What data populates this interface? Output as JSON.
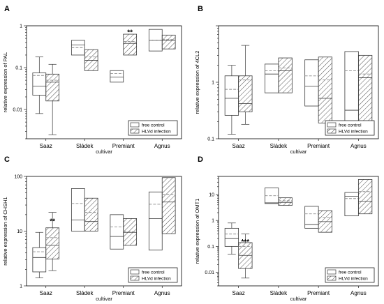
{
  "colors": {
    "axis": "#000000",
    "box_edge": "#3a3a3a",
    "mean_line": "#8c8c8c",
    "hatch": "#505050",
    "background": "#ffffff"
  },
  "legend": {
    "free_label": "free control",
    "hlvd_label": "HLVd infection"
  },
  "chart_data": [
    {
      "panel": "A",
      "type": "box",
      "yscale": "log",
      "ylabel": "relative expression of PAL",
      "xlabel": "cultivar",
      "yticks": [
        {
          "v": 0.01,
          "label": "0.01"
        },
        {
          "v": 0.1,
          "label": "0.1"
        },
        {
          "v": 1,
          "label": "1"
        }
      ],
      "ylim": [
        0.002,
        1
      ],
      "categories": [
        "Saaz",
        "Sládek",
        "Premiant",
        "Agnus"
      ],
      "series": [
        {
          "name": "free control",
          "hatched": false,
          "boxes": [
            {
              "wlo": 0.008,
              "q1": 0.022,
              "med": 0.036,
              "q3": 0.075,
              "whi": 0.18,
              "mean": 0.065
            },
            {
              "wlo": null,
              "q1": 0.2,
              "med": 0.35,
              "q3": 0.45,
              "whi": null,
              "mean": 0.3
            },
            {
              "wlo": null,
              "q1": 0.045,
              "med": 0.06,
              "q3": 0.085,
              "whi": null,
              "mean": 0.072
            },
            {
              "wlo": null,
              "q1": 0.25,
              "med": 0.45,
              "q3": 0.82,
              "whi": null,
              "mean": 0.45
            }
          ]
        },
        {
          "name": "HLVd infection",
          "hatched": true,
          "boxes": [
            {
              "wlo": 0.0025,
              "q1": 0.016,
              "med": 0.045,
              "q3": 0.07,
              "whi": 0.12,
              "mean": 0.05
            },
            {
              "wlo": null,
              "q1": 0.085,
              "med": 0.15,
              "q3": 0.27,
              "whi": null,
              "mean": 0.18
            },
            {
              "wlo": null,
              "q1": 0.2,
              "med": 0.38,
              "q3": 0.63,
              "whi": null,
              "mean": 0.42
            },
            {
              "wlo": null,
              "q1": 0.28,
              "med": 0.45,
              "q3": 0.6,
              "whi": null,
              "mean": 0.47
            }
          ]
        }
      ],
      "annotations": [
        {
          "text": "**",
          "category": "Premiant",
          "series": "HLVd infection",
          "y": 0.7
        }
      ]
    },
    {
      "panel": "B",
      "type": "box",
      "yscale": "log",
      "ylabel": "relative expression of 4CL2",
      "xlabel": "cultivar",
      "yticks": [
        {
          "v": 0.1,
          "label": "0.1"
        },
        {
          "v": 1,
          "label": "1"
        }
      ],
      "ylim": [
        0.1,
        10
      ],
      "categories": [
        "Saaz",
        "Sládek",
        "Premiant",
        "Agnus"
      ],
      "series": [
        {
          "name": "free control",
          "hatched": false,
          "boxes": [
            {
              "wlo": 0.12,
              "q1": 0.26,
              "med": 0.52,
              "q3": 1.3,
              "whi": 2.0,
              "mean": 0.75
            },
            {
              "wlo": null,
              "q1": 0.65,
              "med": 1.4,
              "q3": 2.1,
              "whi": null,
              "mean": 1.6
            },
            {
              "wlo": null,
              "q1": 0.38,
              "med": 0.85,
              "q3": 2.5,
              "whi": null,
              "mean": 1.3
            },
            {
              "wlo": null,
              "q1": 0.14,
              "med": 0.32,
              "q3": 3.5,
              "whi": null,
              "mean": 1.6
            }
          ]
        },
        {
          "name": "HLVd infection",
          "hatched": true,
          "boxes": [
            {
              "wlo": 0.18,
              "q1": 0.3,
              "med": 0.42,
              "q3": 1.3,
              "whi": 4.5,
              "mean": 1.1
            },
            {
              "wlo": null,
              "q1": 0.65,
              "med": 1.6,
              "q3": 2.7,
              "whi": null,
              "mean": 1.8
            },
            {
              "wlo": null,
              "q1": 0.19,
              "med": 0.52,
              "q3": 2.8,
              "whi": null,
              "mean": 1.1
            },
            {
              "wlo": null,
              "q1": 0.15,
              "med": 1.2,
              "q3": 3.0,
              "whi": null,
              "mean": 1.4
            }
          ]
        }
      ],
      "annotations": []
    },
    {
      "panel": "C",
      "type": "box",
      "yscale": "log",
      "ylabel": "relative expression of CHSH1",
      "xlabel": "cultivar",
      "yticks": [
        {
          "v": 1,
          "label": "1"
        },
        {
          "v": 10,
          "label": "10"
        },
        {
          "v": 100,
          "label": "100"
        }
      ],
      "ylim": [
        1,
        100
      ],
      "categories": [
        "Saaz",
        "Sládek",
        "Premiant",
        "Agnus"
      ],
      "series": [
        {
          "name": "free control",
          "hatched": false,
          "boxes": [
            {
              "wlo": 1.4,
              "q1": 1.8,
              "med": 3.3,
              "q3": 5.0,
              "whi": 9.5,
              "mean": 4.2
            },
            {
              "wlo": null,
              "q1": 10,
              "med": 16,
              "q3": 60,
              "whi": null,
              "mean": 32
            },
            {
              "wlo": null,
              "q1": 4.7,
              "med": 8.0,
              "q3": 20,
              "whi": null,
              "mean": 12
            },
            {
              "wlo": null,
              "q1": 4.5,
              "med": 17,
              "q3": 52,
              "whi": null,
              "mean": 31
            }
          ]
        },
        {
          "name": "HLVd infection",
          "hatched": true,
          "boxes": [
            {
              "wlo": 1.9,
              "q1": 3.1,
              "med": 5.5,
              "q3": 11.5,
              "whi": 22,
              "mean": 7.6
            },
            {
              "wlo": null,
              "q1": 10,
              "med": 15,
              "q3": 40,
              "whi": null,
              "mean": 22
            },
            {
              "wlo": null,
              "q1": 5.5,
              "med": 9.5,
              "q3": 17,
              "whi": null,
              "mean": 9.8
            },
            {
              "wlo": null,
              "q1": 9,
              "med": 34,
              "q3": 95,
              "whi": null,
              "mean": 47
            }
          ]
        }
      ],
      "annotations": [
        {
          "text": "**",
          "category": "Saaz",
          "series": "HLVd infection",
          "y": 15
        }
      ]
    },
    {
      "panel": "D",
      "type": "box",
      "yscale": "log",
      "ylabel": "relative expression of OMT1",
      "xlabel": "cultivar",
      "yticks": [
        {
          "v": 0.01,
          "label": "0.01"
        },
        {
          "v": 0.1,
          "label": "0.1"
        },
        {
          "v": 1,
          "label": "1"
        },
        {
          "v": 10,
          "label": "10"
        }
      ],
      "ylim": [
        0.003,
        50
      ],
      "categories": [
        "Saaz",
        "Sládek",
        "Premiant",
        "Agnus"
      ],
      "series": [
        {
          "name": "free control",
          "hatched": false,
          "boxes": [
            {
              "wlo": 0.05,
              "q1": 0.1,
              "med": 0.2,
              "q3": 0.5,
              "whi": 0.8,
              "mean": 0.3
            },
            {
              "wlo": null,
              "q1": 4.5,
              "med": 4.8,
              "q3": 18,
              "whi": null,
              "mean": 9.0
            },
            {
              "wlo": null,
              "q1": 0.5,
              "med": 0.7,
              "q3": 3.5,
              "whi": null,
              "mean": 1.8
            },
            {
              "wlo": null,
              "q1": 1.5,
              "med": 8.5,
              "q3": 12,
              "whi": null,
              "mean": 7.0
            }
          ]
        },
        {
          "name": "HLVd infection",
          "hatched": true,
          "boxes": [
            {
              "wlo": 0.006,
              "q1": 0.014,
              "med": 0.045,
              "q3": 0.14,
              "whi": 0.3,
              "mean": 0.1
            },
            {
              "wlo": null,
              "q1": 3.8,
              "med": 5.0,
              "q3": 7.5,
              "whi": null,
              "mean": 5.8
            },
            {
              "wlo": null,
              "q1": 0.35,
              "med": 0.9,
              "q3": 2.4,
              "whi": null,
              "mean": 1.3
            },
            {
              "wlo": null,
              "q1": 1.8,
              "med": 5.5,
              "q3": 38,
              "whi": null,
              "mean": 13
            }
          ]
        }
      ],
      "annotations": [
        {
          "text": "***",
          "category": "Saaz",
          "series": "HLVd infection",
          "y": 0.15
        }
      ]
    }
  ]
}
